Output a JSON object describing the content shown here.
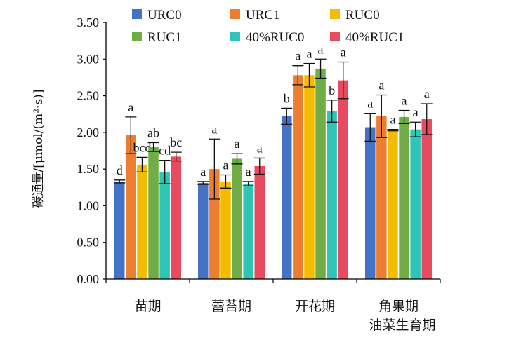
{
  "chart_data": {
    "type": "bar",
    "ylabel": "碳通量/[μmol/(m²·s)]",
    "xlabel": "油菜生育期",
    "ylim": [
      0,
      3.5
    ],
    "yticks": [
      "0.00",
      "0.50",
      "1.00",
      "1.50",
      "2.00",
      "2.50",
      "3.00",
      "3.50"
    ],
    "yticks_values": [
      0,
      0.5,
      1,
      1.5,
      2,
      2.5,
      3,
      3.5
    ],
    "categories": [
      "苗期",
      "蕾苔期",
      "开花期",
      "角果期"
    ],
    "legend_position": "top",
    "series": [
      {
        "name": "URC0",
        "color": "#4472C4",
        "values": [
          1.33,
          1.31,
          2.22,
          2.07
        ],
        "errors": [
          0.02,
          0.02,
          0.11,
          0.19
        ],
        "labels": [
          "d",
          "a",
          "b",
          "a"
        ]
      },
      {
        "name": "URC1",
        "color": "#ED7D31",
        "values": [
          1.96,
          1.5,
          2.78,
          2.22
        ],
        "errors": [
          0.25,
          0.41,
          0.13,
          0.29
        ],
        "labels": [
          "a",
          "a",
          "a",
          "a"
        ]
      },
      {
        "name": "RUC0",
        "color": "#F2BC00",
        "values": [
          1.56,
          1.33,
          2.78,
          2.03
        ],
        "errors": [
          0.1,
          0.09,
          0.16,
          0.01
        ],
        "labels": [
          "bcd",
          "a",
          "a",
          "a"
        ]
      },
      {
        "name": "RUC1",
        "color": "#70AD47",
        "values": [
          1.8,
          1.64,
          2.87,
          2.21
        ],
        "errors": [
          0.06,
          0.07,
          0.13,
          0.09
        ],
        "labels": [
          "ab",
          "a",
          "a",
          "a"
        ]
      },
      {
        "name": "40%RUC0",
        "color": "#2EC4B6",
        "values": [
          1.46,
          1.3,
          2.29,
          2.04
        ],
        "errors": [
          0.16,
          0.03,
          0.15,
          0.1
        ],
        "labels": [
          "cd",
          "a",
          "b",
          "a"
        ]
      },
      {
        "name": "40%RUC1",
        "color": "#E84A5F",
        "values": [
          1.67,
          1.54,
          2.71,
          2.18
        ],
        "errors": [
          0.06,
          0.11,
          0.25,
          0.21
        ],
        "labels": [
          "bc",
          "a",
          "a",
          "a"
        ]
      }
    ]
  }
}
